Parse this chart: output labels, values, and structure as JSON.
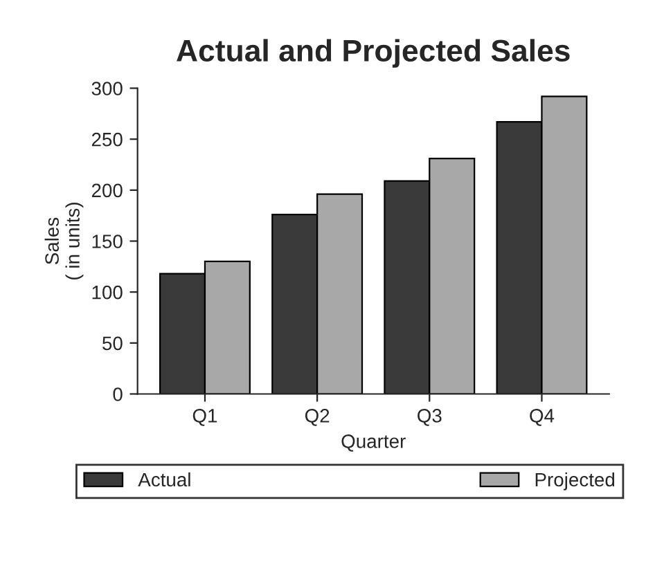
{
  "chart_data": {
    "type": "bar",
    "title": "Actual and Projected Sales",
    "xlabel": "Quarter",
    "ylabel": "Sales\n( in units)",
    "categories": [
      "Q1",
      "Q2",
      "Q3",
      "Q4"
    ],
    "series": [
      {
        "name": "Actual",
        "color": "#3a3a3a",
        "values": [
          118,
          176,
          209,
          267
        ]
      },
      {
        "name": "Projected",
        "color": "#a8a8a8",
        "values": [
          130,
          196,
          231,
          292
        ]
      }
    ],
    "ylim": [
      0,
      300
    ],
    "yticks": [
      0,
      50,
      100,
      150,
      200,
      250,
      300
    ],
    "grid": false,
    "legend": "bottom"
  }
}
